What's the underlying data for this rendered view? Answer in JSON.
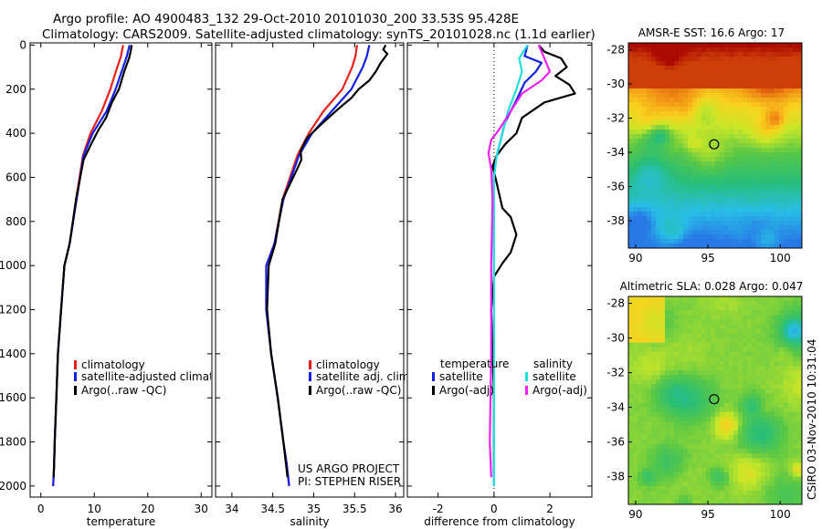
{
  "header": {
    "line1": "Argo profile: AO 4900483_132 29-Oct-2010 20101030_200 33.53S 95.428E",
    "line2": "Climatology: CARS2009. Satellite-adjusted climatology: synTS_20101028.nc (1.1d earlier)"
  },
  "colors": {
    "climatology": "#e8221b",
    "satellite": "#1420e6",
    "argo": "#000000",
    "sal_satellite": "#22e0e0",
    "sal_argo": "#ee22ee"
  },
  "chart_data": [
    {
      "type": "line",
      "name": "temperature-profile",
      "xlabel": "temperature",
      "ylabel": "",
      "xlim": [
        -2,
        32
      ],
      "ylim": [
        2050,
        -10
      ],
      "xticks": [
        0,
        10,
        20,
        30
      ],
      "yticks": [
        0,
        200,
        400,
        600,
        800,
        1000,
        1200,
        1400,
        1600,
        1800,
        2000
      ],
      "legend": {
        "position": "lower-center",
        "entries": [
          "climatology",
          "satellite-adjusted climatology",
          "Argo(..raw -QC)"
        ]
      },
      "series": [
        {
          "name": "climatology",
          "color_key": "climatology",
          "x": [
            15.4,
            15.0,
            14.3,
            13.0,
            11.4,
            9.3,
            7.9,
            6.6,
            5.4,
            4.4,
            3.8,
            3.2,
            2.9,
            2.6,
            2.5,
            2.3
          ],
          "y": [
            0,
            50,
            100,
            200,
            300,
            400,
            500,
            700,
            900,
            1000,
            1200,
            1400,
            1600,
            1800,
            1900,
            2000
          ]
        },
        {
          "name": "satellite-adjusted climatology",
          "color_key": "satellite",
          "x": [
            16.6,
            16.1,
            15.4,
            14.0,
            12.3,
            9.7,
            8.0,
            6.7,
            5.4,
            4.4,
            3.8,
            3.2,
            2.9,
            2.6,
            2.5,
            2.3
          ],
          "y": [
            0,
            50,
            100,
            200,
            300,
            400,
            500,
            700,
            900,
            1000,
            1200,
            1400,
            1600,
            1800,
            1900,
            2000
          ]
        },
        {
          "name": "Argo(..raw -QC)",
          "color_key": "argo",
          "x": [
            17.0,
            16.8,
            16.5,
            15.6,
            14.6,
            13.3,
            12.2,
            10.9,
            9.6,
            8.0,
            6.6,
            5.4,
            4.4,
            3.8,
            3.2,
            2.9,
            2.6,
            2.4
          ],
          "y": [
            0,
            30,
            60,
            120,
            200,
            260,
            330,
            380,
            440,
            520,
            700,
            900,
            1000,
            1200,
            1400,
            1600,
            1800,
            1960
          ]
        }
      ]
    },
    {
      "type": "line",
      "name": "salinity-profile",
      "xlabel": "salinity",
      "ylabel": "",
      "xlim": [
        33.8,
        36.1
      ],
      "ylim": [
        2050,
        -10
      ],
      "xticks": [
        34,
        34.5,
        35,
        35.5,
        36
      ],
      "legend": {
        "position": "lower-right",
        "entries": [
          "climatology",
          "satellite adj. clim.",
          "Argo(..raw -QC)"
        ]
      },
      "annotation": [
        "US ARGO PROJECT",
        "PI: STEPHEN RISER"
      ],
      "series": [
        {
          "name": "climatology",
          "color_key": "climatology",
          "x": [
            35.53,
            35.51,
            35.47,
            35.35,
            35.12,
            34.94,
            34.8,
            34.62,
            34.52,
            34.42,
            34.42,
            34.48,
            34.56,
            34.63,
            34.67,
            34.7
          ],
          "y": [
            0,
            50,
            100,
            200,
            300,
            400,
            500,
            700,
            900,
            1000,
            1200,
            1400,
            1600,
            1800,
            1900,
            2000
          ]
        },
        {
          "name": "satellite adj. clim.",
          "color_key": "satellite",
          "x": [
            35.68,
            35.65,
            35.6,
            35.46,
            35.22,
            34.98,
            34.82,
            34.63,
            34.52,
            34.42,
            34.42,
            34.48,
            34.56,
            34.63,
            34.67,
            34.7
          ],
          "y": [
            0,
            50,
            100,
            200,
            300,
            400,
            500,
            700,
            900,
            1000,
            1200,
            1400,
            1600,
            1800,
            1900,
            2000
          ]
        },
        {
          "name": "Argo(..raw -QC)",
          "color_key": "argo",
          "x": [
            35.88,
            35.85,
            35.9,
            35.82,
            35.76,
            35.68,
            35.55,
            35.46,
            35.3,
            35.12,
            34.92,
            34.84,
            34.85,
            34.8,
            34.62,
            34.53,
            34.45,
            34.43,
            34.48,
            34.56,
            34.63,
            34.68
          ],
          "y": [
            0,
            20,
            40,
            80,
            120,
            160,
            200,
            240,
            290,
            350,
            420,
            480,
            520,
            560,
            700,
            900,
            1000,
            1200,
            1400,
            1600,
            1800,
            1960
          ]
        }
      ]
    },
    {
      "type": "line",
      "name": "difference-profile",
      "xlabel": "difference from climatology",
      "ylabel": "",
      "xlim": [
        -3.1,
        3.5
      ],
      "ylim": [
        2050,
        -10
      ],
      "xticks": [
        -2,
        0,
        2
      ],
      "zero_line": true,
      "legend": {
        "position": "lower-center",
        "groups": [
          "temperature",
          "salinity"
        ],
        "entries": [
          "satellite",
          "Argo(-adj)",
          "satellite",
          "Argo(-adj)"
        ]
      },
      "series": [
        {
          "name": "temperature satellite",
          "color_key": "satellite",
          "x": [
            1.2,
            1.1,
            1.7,
            1.5,
            1.1,
            0.8,
            0.4,
            0.2,
            0.0,
            0.0,
            0.0,
            0.0,
            0.0
          ],
          "y": [
            0,
            50,
            80,
            120,
            170,
            250,
            350,
            450,
            550,
            800,
            1000,
            1500,
            2000
          ]
        },
        {
          "name": "temperature Argo(-adj)",
          "color_key": "argo",
          "x": [
            1.6,
            1.8,
            2.4,
            2.6,
            2.2,
            2.7,
            2.9,
            1.8,
            1.0,
            0.8,
            0.4,
            0.1,
            -0.05,
            0.05,
            0.3,
            0.6,
            0.8,
            0.6,
            0.3,
            0.0,
            -0.1,
            0.0,
            0.0
          ],
          "y": [
            0,
            30,
            60,
            100,
            140,
            180,
            220,
            260,
            330,
            400,
            450,
            500,
            550,
            600,
            740,
            780,
            860,
            940,
            990,
            1050,
            1200,
            1600,
            1960
          ]
        },
        {
          "name": "salinity satellite",
          "color_key": "sal_satellite",
          "x": [
            1.2,
            0.9,
            1.0,
            0.8,
            0.5,
            0.3,
            0.1,
            0.0,
            0.0,
            0.0,
            0.0
          ],
          "y": [
            0,
            60,
            120,
            200,
            300,
            400,
            500,
            600,
            1000,
            1500,
            2000
          ]
        },
        {
          "name": "salinity Argo(-adj)",
          "color_key": "sal_argo",
          "x": [
            1.6,
            1.8,
            2.0,
            1.7,
            1.0,
            0.6,
            0.2,
            -0.1,
            -0.2,
            -0.1,
            -0.05,
            -0.1,
            -0.1,
            -0.15,
            -0.1
          ],
          "y": [
            0,
            60,
            120,
            160,
            220,
            300,
            380,
            430,
            490,
            560,
            700,
            1000,
            1400,
            1800,
            1960
          ]
        }
      ]
    },
    {
      "type": "heatmap",
      "name": "sst-map",
      "title": "AMSR-E SST: 16.6 Argo: 17",
      "xlim": [
        89.5,
        101.5
      ],
      "ylim": [
        -39.6,
        -27.6
      ],
      "xticks": [
        90,
        95,
        100
      ],
      "yticks": [
        -28,
        -30,
        -32,
        -34,
        -36,
        -38
      ],
      "marker": {
        "lon": 95.428,
        "lat": -33.53
      }
    },
    {
      "type": "heatmap",
      "name": "sla-map",
      "title": "Altimetric SLA: 0.028 Argo: 0.047",
      "xlim": [
        89.5,
        101.5
      ],
      "ylim": [
        -39.6,
        -27.6
      ],
      "xticks": [
        90,
        95,
        100
      ],
      "yticks": [
        -28,
        -30,
        -32,
        -34,
        -36,
        -38
      ],
      "marker": {
        "lon": 95.428,
        "lat": -33.53
      }
    }
  ],
  "side_text": "CSIRO 03-Nov-2010 10:31:04"
}
